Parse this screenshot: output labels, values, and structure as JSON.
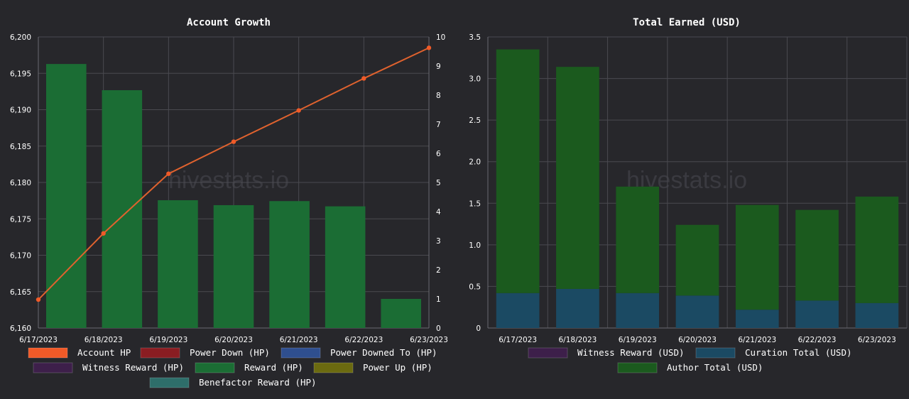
{
  "watermark": "hivestats.io",
  "chart_data": [
    {
      "type": "bar",
      "title": "Account Growth",
      "categories": [
        "6/17/2023",
        "6/18/2023",
        "6/19/2023",
        "6/20/2023",
        "6/21/2023",
        "6/22/2023",
        "6/23/2023"
      ],
      "ylim_left": [
        6160,
        6200
      ],
      "ylim_right": [
        0,
        10
      ],
      "yticks_left": [
        "6,160",
        "6,165",
        "6,170",
        "6,175",
        "6,180",
        "6,185",
        "6,190",
        "6,195",
        "6,200"
      ],
      "yticks_right": [
        "0",
        "1",
        "2",
        "3",
        "4",
        "5",
        "6",
        "7",
        "8",
        "9",
        "10"
      ],
      "bars_axis": "left",
      "line_axis": "right",
      "series": [
        {
          "name": "Account HP",
          "kind": "line",
          "color": "#f05a28",
          "values": [
            6163.9,
            6173.0,
            6181.2,
            6185.6,
            6189.9,
            6194.3,
            6198.5
          ]
        },
        {
          "name": "Power Down (HP)",
          "kind": "bar",
          "color": "#8a1d22",
          "values": [
            0,
            0,
            0,
            0,
            0,
            0,
            0
          ]
        },
        {
          "name": "Power Downed To (HP)",
          "kind": "bar",
          "color": "#2f4f8f",
          "values": [
            0,
            0,
            0,
            0,
            0,
            0,
            0
          ]
        },
        {
          "name": "Witness Reward (HP)",
          "kind": "bar",
          "color": "#3d1f4a",
          "values": [
            0,
            0,
            0,
            0,
            0,
            0,
            0
          ]
        },
        {
          "name": "Reward (HP)",
          "kind": "bar",
          "color": "#1b6d34",
          "values": [
            9.07,
            8.17,
            4.39,
            4.22,
            4.36,
            4.18,
            1.0
          ]
        },
        {
          "name": "Power Up (HP)",
          "kind": "bar",
          "color": "#6b6a10",
          "values": [
            0,
            0,
            0,
            0,
            0,
            0,
            0
          ]
        },
        {
          "name": "Benefactor Reward (HP)",
          "kind": "bar",
          "color": "#2e6e6a",
          "values": [
            0,
            0,
            0,
            0,
            0,
            0,
            0
          ]
        }
      ],
      "legend": [
        {
          "label": "Account HP",
          "color": "#f05a28"
        },
        {
          "label": "Power Down (HP)",
          "color": "#8a1d22"
        },
        {
          "label": "Power Downed To (HP)",
          "color": "#2f4f8f"
        },
        {
          "label": "Witness Reward (HP)",
          "color": "#3d1f4a"
        },
        {
          "label": "Reward (HP)",
          "color": "#1b6d34"
        },
        {
          "label": "Power Up (HP)",
          "color": "#6b6a10"
        },
        {
          "label": "Benefactor Reward (HP)",
          "color": "#2e6e6a"
        }
      ],
      "grid": true,
      "legend_position": "bottom"
    },
    {
      "type": "bar",
      "title": "Total Earned (USD)",
      "categories": [
        "6/17/2023",
        "6/18/2023",
        "6/19/2023",
        "6/20/2023",
        "6/21/2023",
        "6/22/2023",
        "6/23/2023"
      ],
      "ylim": [
        0,
        3.5
      ],
      "yticks": [
        "0",
        "0.5",
        "1.0",
        "1.5",
        "2.0",
        "2.5",
        "3.0",
        "3.5"
      ],
      "stacked": true,
      "series": [
        {
          "name": "Witness Reward (USD)",
          "color": "#3d1f4a",
          "values": [
            0,
            0,
            0,
            0,
            0,
            0,
            0
          ]
        },
        {
          "name": "Curation Total (USD)",
          "color": "#1b4a63",
          "values": [
            0.42,
            0.47,
            0.42,
            0.39,
            0.22,
            0.33,
            0.3
          ]
        },
        {
          "name": "Author Total (USD)",
          "color": "#1b5a1e",
          "values": [
            2.93,
            2.67,
            1.28,
            0.85,
            1.26,
            1.09,
            1.28
          ]
        }
      ],
      "legend": [
        {
          "label": "Witness Reward (USD)",
          "color": "#3d1f4a"
        },
        {
          "label": "Curation Total (USD)",
          "color": "#1b4a63"
        },
        {
          "label": "Author Total (USD)",
          "color": "#1b5a1e"
        }
      ],
      "grid": true,
      "legend_position": "bottom"
    }
  ]
}
